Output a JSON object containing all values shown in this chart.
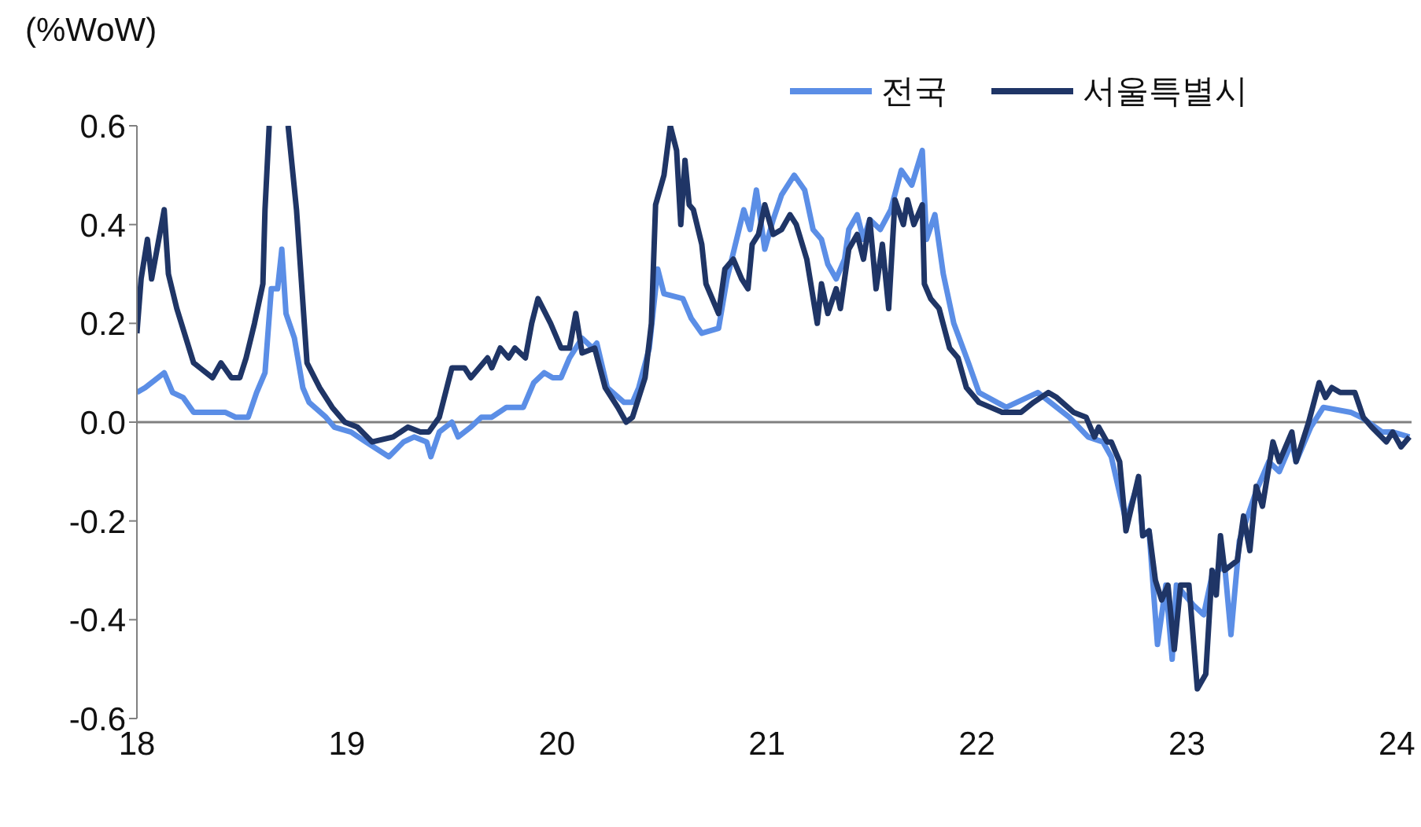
{
  "chart_data": {
    "type": "line",
    "ylabel": "(%WoW)",
    "xlim": [
      18,
      24.07
    ],
    "xticks": [
      18,
      19,
      20,
      21,
      22,
      23,
      24
    ],
    "ylim": [
      -0.6,
      0.6
    ],
    "yticks": [
      0.6,
      0.4,
      0.2,
      {
        "value": 0,
        "label": "0.0"
      },
      -0.2,
      -0.4,
      -0.6
    ],
    "grid": false,
    "legend": "top right",
    "line_style": "solid",
    "marker": "none",
    "ref_lines": [
      {
        "axis": "y",
        "value": 0,
        "color": "#808080"
      }
    ],
    "series": [
      {
        "name": "전국",
        "color": "#5b8ee6",
        "x": [
          18.0,
          18.04,
          18.13,
          18.17,
          18.22,
          18.27,
          18.32,
          18.42,
          18.47,
          18.53,
          18.57,
          18.61,
          18.64,
          18.67,
          18.69,
          18.71,
          18.75,
          18.79,
          18.82,
          18.9,
          18.94,
          19.02,
          19.09,
          19.2,
          19.27,
          19.32,
          19.38,
          19.4,
          19.44,
          19.5,
          19.53,
          19.59,
          19.64,
          19.69,
          19.76,
          19.84,
          19.89,
          19.94,
          19.98,
          20.02,
          20.06,
          20.12,
          20.17,
          20.19,
          20.24,
          20.32,
          20.36,
          20.39,
          20.44,
          20.48,
          20.51,
          20.6,
          20.64,
          20.69,
          20.77,
          20.81,
          20.89,
          20.92,
          20.95,
          20.99,
          21.03,
          21.07,
          21.13,
          21.18,
          21.22,
          21.26,
          21.29,
          21.33,
          21.37,
          21.39,
          21.43,
          21.46,
          21.49,
          21.54,
          21.59,
          21.64,
          21.69,
          21.74,
          21.76,
          21.8,
          21.84,
          21.89,
          21.96,
          22.01,
          22.14,
          22.29,
          22.44,
          22.53,
          22.6,
          22.64,
          22.71,
          22.77,
          22.79,
          22.82,
          22.86,
          22.9,
          22.93,
          22.95,
          23.03,
          23.08,
          23.12,
          23.18,
          23.21,
          23.25,
          23.33,
          23.39,
          23.44,
          23.5,
          23.52,
          23.59,
          23.65,
          23.78,
          23.83,
          23.93,
          23.98,
          24.06
        ],
        "values": [
          0.06,
          0.07,
          0.1,
          0.06,
          0.05,
          0.02,
          0.02,
          0.02,
          0.01,
          0.01,
          0.06,
          0.1,
          0.27,
          0.27,
          0.35,
          0.22,
          0.17,
          0.07,
          0.04,
          0.01,
          -0.01,
          -0.02,
          -0.04,
          -0.07,
          -0.04,
          -0.03,
          -0.04,
          -0.07,
          -0.02,
          0.0,
          -0.03,
          -0.01,
          0.01,
          0.01,
          0.03,
          0.03,
          0.08,
          0.1,
          0.09,
          0.09,
          0.13,
          0.17,
          0.15,
          0.16,
          0.07,
          0.04,
          0.04,
          0.07,
          0.15,
          0.31,
          0.26,
          0.25,
          0.21,
          0.18,
          0.19,
          0.29,
          0.43,
          0.39,
          0.47,
          0.35,
          0.41,
          0.46,
          0.5,
          0.47,
          0.39,
          0.37,
          0.32,
          0.29,
          0.33,
          0.39,
          0.42,
          0.37,
          0.41,
          0.39,
          0.43,
          0.51,
          0.48,
          0.55,
          0.37,
          0.42,
          0.3,
          0.2,
          0.12,
          0.06,
          0.03,
          0.06,
          0.01,
          -0.03,
          -0.04,
          -0.07,
          -0.2,
          -0.12,
          -0.23,
          -0.22,
          -0.45,
          -0.33,
          -0.48,
          -0.33,
          -0.37,
          -0.39,
          -0.31,
          -0.29,
          -0.43,
          -0.24,
          -0.14,
          -0.08,
          -0.1,
          -0.04,
          -0.08,
          -0.01,
          0.03,
          0.02,
          0.01,
          -0.02,
          -0.02,
          -0.03
        ]
      },
      {
        "name": "서울특별시",
        "color": "#1f3566",
        "x": [
          18.0,
          18.02,
          18.05,
          18.07,
          18.13,
          18.15,
          18.19,
          18.27,
          18.36,
          18.4,
          18.45,
          18.49,
          18.52,
          18.56,
          18.6,
          18.61,
          18.63,
          18.67,
          18.72,
          18.76,
          18.81,
          18.87,
          18.93,
          18.99,
          19.05,
          19.12,
          19.22,
          19.29,
          19.35,
          19.39,
          19.44,
          19.5,
          19.56,
          19.59,
          19.67,
          19.69,
          19.73,
          19.77,
          19.8,
          19.85,
          19.88,
          19.91,
          19.97,
          20.02,
          20.06,
          20.09,
          20.12,
          20.18,
          20.23,
          20.29,
          20.33,
          20.36,
          20.42,
          20.45,
          20.47,
          20.51,
          20.54,
          20.57,
          20.59,
          20.61,
          20.63,
          20.65,
          20.69,
          20.71,
          20.77,
          20.8,
          20.84,
          20.88,
          20.91,
          20.93,
          20.96,
          20.99,
          21.03,
          21.07,
          21.11,
          21.14,
          21.19,
          21.24,
          21.26,
          21.29,
          21.33,
          21.35,
          21.39,
          21.43,
          21.46,
          21.49,
          21.52,
          21.55,
          21.58,
          21.61,
          21.65,
          21.67,
          21.7,
          21.74,
          21.75,
          21.78,
          21.82,
          21.87,
          21.91,
          21.95,
          22.01,
          22.12,
          22.21,
          22.27,
          22.34,
          22.38,
          22.46,
          22.52,
          22.56,
          22.58,
          22.62,
          22.64,
          22.68,
          22.71,
          22.77,
          22.79,
          22.82,
          22.85,
          22.88,
          22.91,
          22.94,
          22.97,
          23.01,
          23.05,
          23.09,
          23.12,
          23.14,
          23.16,
          23.18,
          23.24,
          23.27,
          23.3,
          23.33,
          23.36,
          23.41,
          23.44,
          23.5,
          23.52,
          23.58,
          23.63,
          23.66,
          23.69,
          23.73,
          23.8,
          23.84,
          23.88,
          23.95,
          23.98,
          24.02,
          24.06
        ],
        "values": [
          0.18,
          0.29,
          0.37,
          0.29,
          0.43,
          0.3,
          0.23,
          0.12,
          0.09,
          0.12,
          0.09,
          0.09,
          0.13,
          0.2,
          0.28,
          0.43,
          0.6,
          null,
          0.6,
          0.43,
          0.12,
          0.07,
          0.03,
          0.0,
          -0.01,
          -0.04,
          -0.03,
          -0.01,
          -0.02,
          -0.02,
          0.01,
          0.11,
          0.11,
          0.09,
          0.13,
          0.11,
          0.15,
          0.13,
          0.15,
          0.13,
          0.2,
          0.25,
          0.2,
          0.15,
          0.15,
          0.22,
          0.14,
          0.15,
          0.07,
          0.03,
          0.0,
          0.01,
          0.09,
          0.2,
          0.44,
          0.5,
          0.6,
          0.55,
          0.4,
          0.53,
          0.44,
          0.43,
          0.36,
          0.28,
          0.22,
          0.31,
          0.33,
          0.29,
          0.27,
          0.36,
          0.38,
          0.44,
          0.38,
          0.39,
          0.42,
          0.4,
          0.33,
          0.2,
          0.28,
          0.22,
          0.27,
          0.23,
          0.35,
          0.38,
          0.33,
          0.41,
          0.27,
          0.36,
          0.23,
          0.45,
          0.4,
          0.45,
          0.4,
          0.44,
          0.28,
          0.25,
          0.23,
          0.15,
          0.13,
          0.07,
          0.04,
          0.02,
          0.02,
          0.04,
          0.06,
          0.05,
          0.02,
          0.01,
          -0.03,
          -0.01,
          -0.04,
          -0.04,
          -0.08,
          -0.22,
          -0.11,
          -0.23,
          -0.22,
          -0.32,
          -0.36,
          -0.33,
          -0.46,
          -0.33,
          -0.33,
          -0.54,
          -0.51,
          -0.3,
          -0.35,
          -0.23,
          -0.3,
          -0.28,
          -0.19,
          -0.26,
          -0.13,
          -0.17,
          -0.04,
          -0.08,
          -0.02,
          -0.08,
          0.0,
          0.08,
          0.05,
          0.07,
          0.06,
          0.06,
          0.01,
          -0.01,
          -0.04,
          -0.02,
          -0.05,
          -0.03
        ]
      }
    ]
  }
}
